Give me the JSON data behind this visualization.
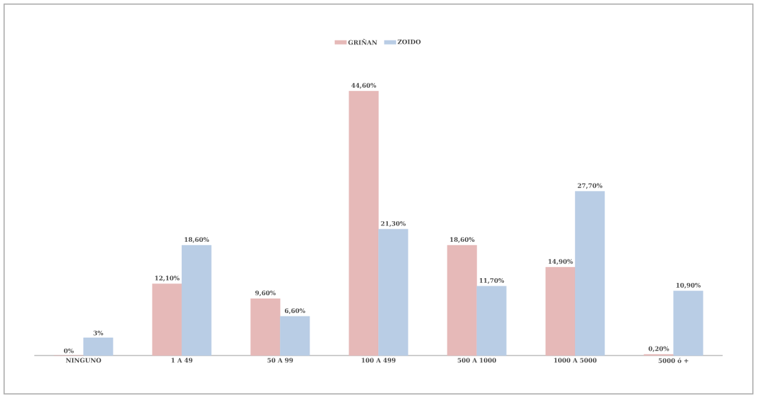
{
  "chart_data": {
    "type": "bar",
    "categories": [
      "NINGUNO",
      "1 A 49",
      "50 A 99",
      "100 A 499",
      "500 A 1000",
      "1000 A 5000",
      "5000 ó +"
    ],
    "series": [
      {
        "name": "GRIÑAN",
        "color": "#e6b9b8",
        "values": [
          0,
          12.1,
          9.6,
          44.6,
          18.6,
          14.9,
          0.2
        ],
        "value_labels": [
          "0%",
          "12,10%",
          "9,60%",
          "44,60%",
          "18,60%",
          "14,90%",
          "0,20%"
        ]
      },
      {
        "name": "ZOIDO",
        "color": "#b9cde5",
        "values": [
          3,
          18.6,
          6.6,
          21.3,
          11.7,
          27.7,
          10.9
        ],
        "value_labels": [
          "3%",
          "18,60%",
          "6,60%",
          "21,30%",
          "11,70%",
          "27,70%",
          "10,90%"
        ]
      }
    ],
    "legend": "top"
  }
}
